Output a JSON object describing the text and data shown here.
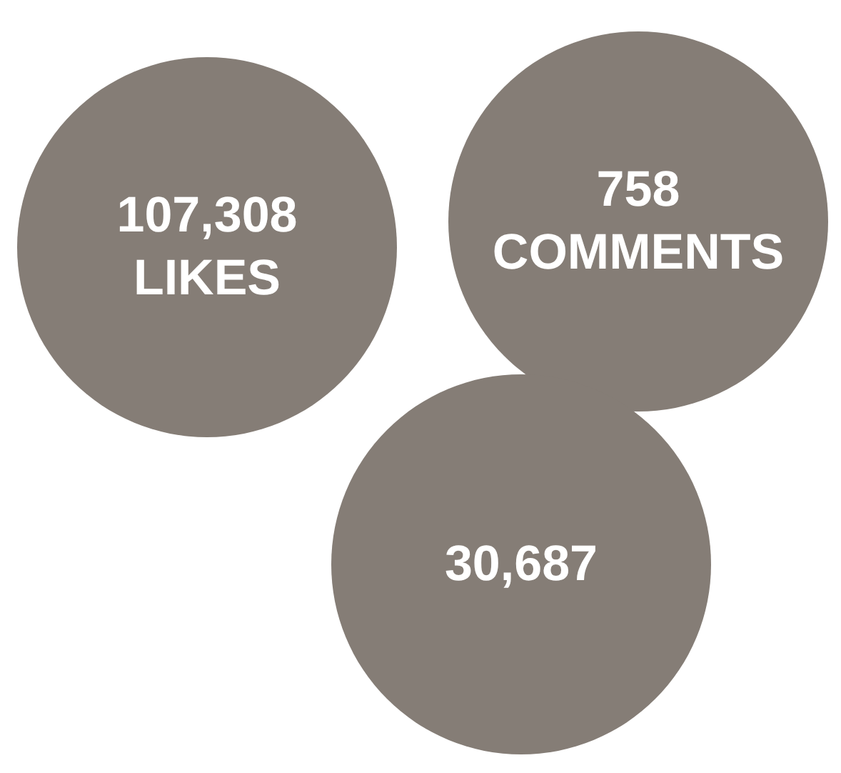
{
  "chart_data": {
    "type": "other",
    "categories": [
      "LIKES",
      "COMMENTS",
      null
    ],
    "values": [
      107308,
      758,
      30687
    ],
    "value_labels": [
      "107,308",
      "758",
      "30,687"
    ],
    "color": "#857d76"
  }
}
